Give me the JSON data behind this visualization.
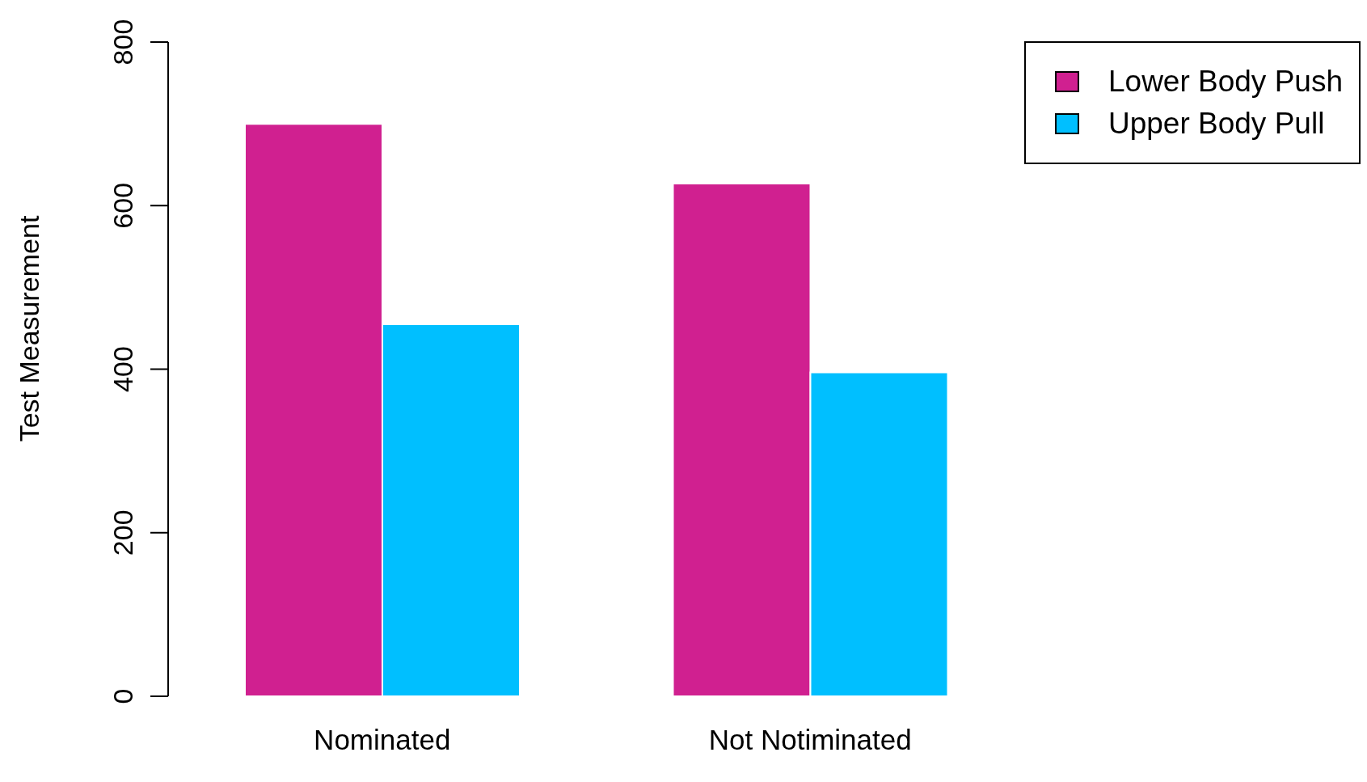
{
  "chart_data": {
    "type": "bar",
    "ylabel": "Test Measurement",
    "categories": [
      "Nominated",
      "Not Notiminated"
    ],
    "series": [
      {
        "name": "Lower Body Push",
        "color": "#d02090",
        "values": [
          700,
          627
        ]
      },
      {
        "name": "Upper Body Pull",
        "color": "#00bfff",
        "values": [
          455,
          396
        ]
      }
    ],
    "ylim": [
      0,
      800
    ],
    "yticks": [
      0,
      200,
      400,
      600,
      800
    ],
    "grid": false,
    "legend": "top right"
  }
}
